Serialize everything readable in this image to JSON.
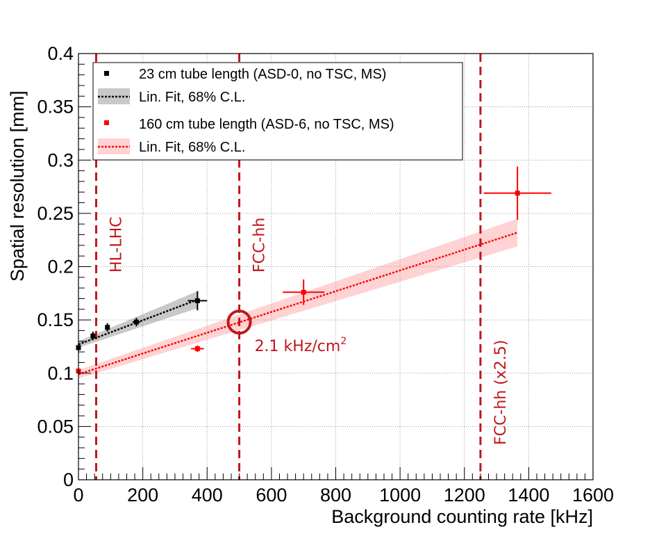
{
  "chart_data": {
    "type": "scatter",
    "title": "",
    "xlabel": "Background counting rate [kHz]",
    "ylabel": "Spatial resolution [mm]",
    "xlim": [
      0,
      1600
    ],
    "ylim": [
      0,
      0.4
    ],
    "x_ticks": [
      0,
      200,
      400,
      600,
      800,
      1000,
      1200,
      1400,
      1600
    ],
    "x_tick_labels": [
      "0",
      "200",
      "400",
      "600",
      "800",
      "1000",
      "1200",
      "1400",
      "1600"
    ],
    "y_ticks": [
      0,
      0.05,
      0.1,
      0.15,
      0.2,
      0.25,
      0.3,
      0.35,
      0.4
    ],
    "y_tick_labels": [
      "0",
      "0.05",
      "0.1",
      "0.15",
      "0.2",
      "0.25",
      "0.3",
      "0.35",
      "0.4"
    ],
    "grid": true,
    "legend_position": "top-left",
    "series": [
      {
        "name": "23 cm tube length (ASD-0, no TSC, MS)",
        "color": "#000000",
        "points": [
          {
            "x": 0,
            "y": 0.124,
            "xerr": 0,
            "yerr": 0.003
          },
          {
            "x": 45,
            "y": 0.135,
            "xerr": 5,
            "yerr": 0.004
          },
          {
            "x": 90,
            "y": 0.143,
            "xerr": 5,
            "yerr": 0.004
          },
          {
            "x": 180,
            "y": 0.148,
            "xerr": 12,
            "yerr": 0.004
          },
          {
            "x": 370,
            "y": 0.168,
            "xerr": 30,
            "yerr": 0.009
          }
        ]
      },
      {
        "name": "160 cm tube length (ASD-6, no TSC, MS)",
        "color": "#ff0000",
        "points": [
          {
            "x": 0,
            "y": 0.102,
            "xerr": 0,
            "yerr": 0.002
          },
          {
            "x": 370,
            "y": 0.123,
            "xerr": 20,
            "yerr": 0.003
          },
          {
            "x": 700,
            "y": 0.176,
            "xerr": 65,
            "yerr": 0.012
          },
          {
            "x": 1365,
            "y": 0.269,
            "xerr": 105,
            "yerr": 0.025
          }
        ]
      }
    ],
    "fits": [
      {
        "name": "Lin. Fit, 68% C.L.",
        "color": "#000000",
        "band_color": "#888888",
        "x_start": 0,
        "x_end": 370,
        "y_start": 0.127,
        "y_end": 0.169,
        "band_start": 0.003,
        "band_end": 0.008
      },
      {
        "name": "Lin. Fit, 68% C.L.",
        "color": "#ff0000",
        "band_color": "#ff8080",
        "x_start": 0,
        "x_end": 1365,
        "y_start": 0.099,
        "y_end": 0.232,
        "band_start": 0.004,
        "band_end": 0.013
      }
    ],
    "vertical_lines": [
      {
        "x": 55,
        "label": "HL-LHC"
      },
      {
        "x": 500,
        "label": "FCC-hh"
      },
      {
        "x": 1250,
        "label": "FCC-hh (x2.5)"
      }
    ],
    "annotation": {
      "x": 500,
      "y": 0.148,
      "text": "2.1 kHz/cm",
      "superscript": "2"
    },
    "accent_color": "#c0161c"
  }
}
